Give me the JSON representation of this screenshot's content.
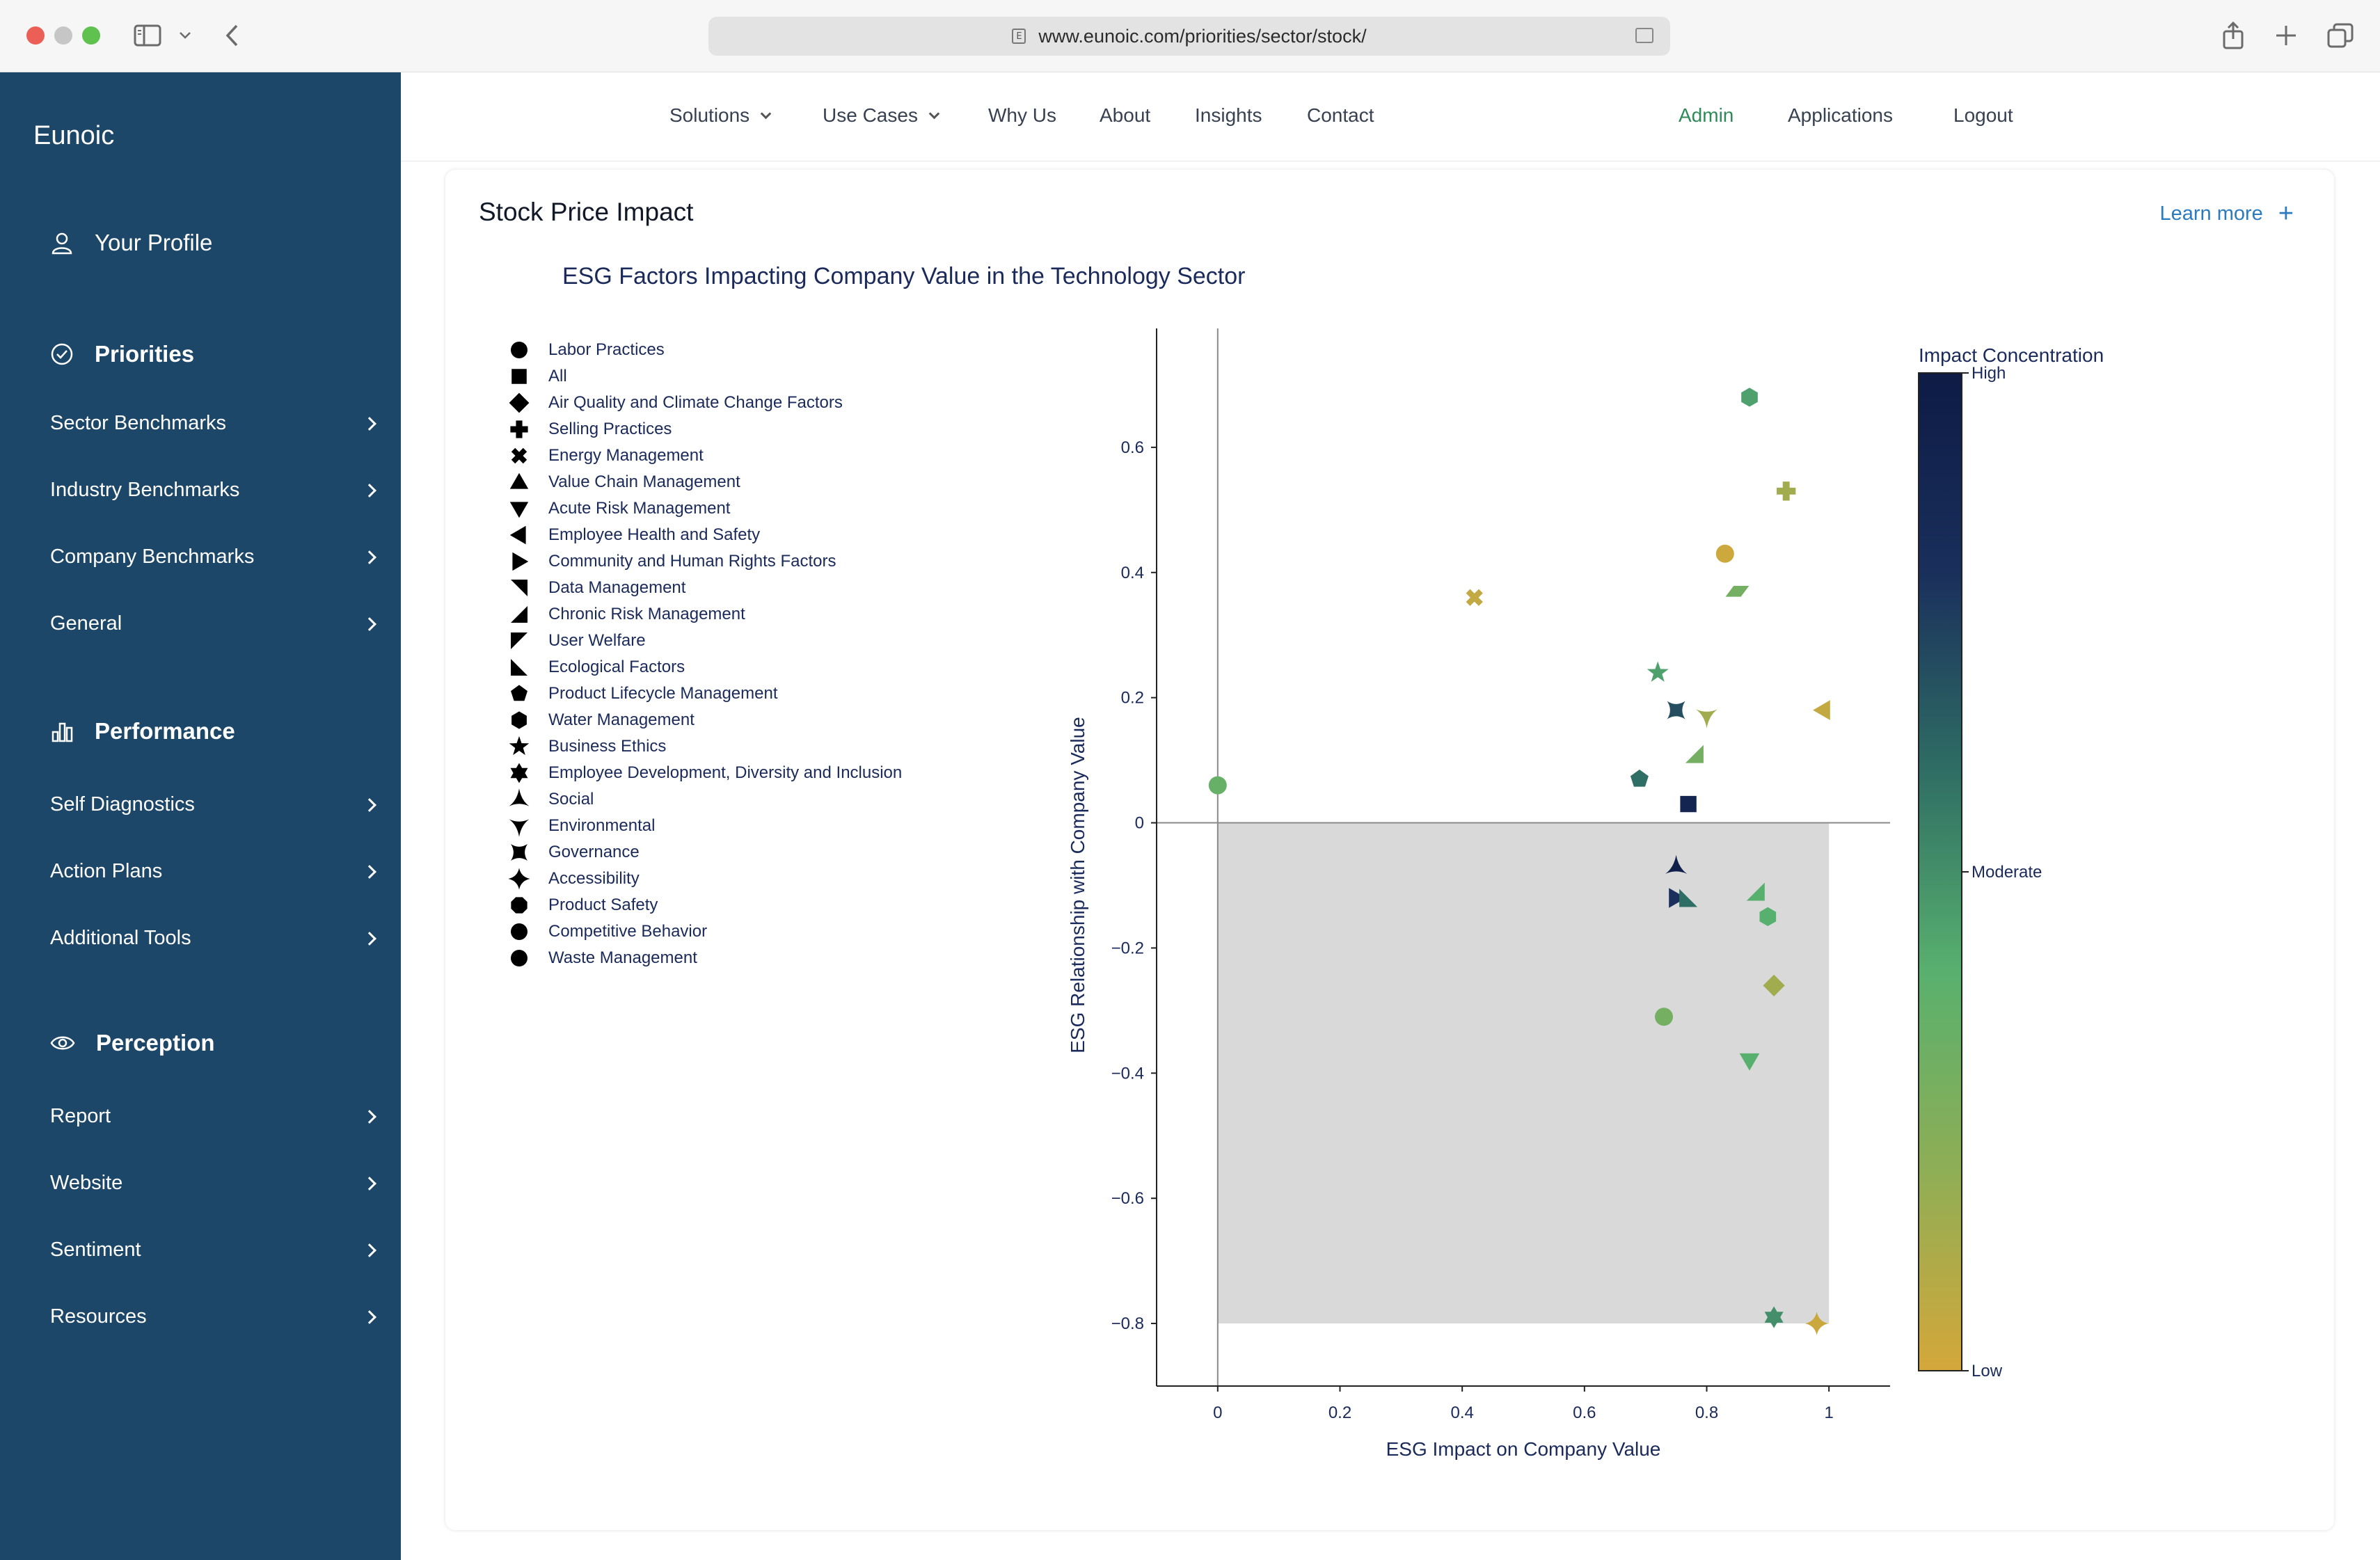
{
  "browser": {
    "url": "www.eunoic.com/priorities/sector/stock/"
  },
  "sidebar": {
    "brand": "Eunoic",
    "profile": "Your Profile",
    "priorities": {
      "title": "Priorities",
      "items": [
        "Sector Benchmarks",
        "Industry Benchmarks",
        "Company Benchmarks",
        "General"
      ]
    },
    "performance": {
      "title": "Performance",
      "items": [
        "Self Diagnostics",
        "Action Plans",
        "Additional Tools"
      ]
    },
    "perception": {
      "title": "Perception",
      "items": [
        "Report",
        "Website",
        "Sentiment",
        "Resources"
      ]
    }
  },
  "topnav": {
    "solutions": "Solutions",
    "use_cases": "Use Cases",
    "why_us": "Why Us",
    "about": "About",
    "insights": "Insights",
    "contact": "Contact",
    "admin": "Admin",
    "applications": "Applications",
    "logout": "Logout"
  },
  "card": {
    "title": "Stock Price Impact",
    "learn_more": "Learn more",
    "learn_more_plus": "+"
  },
  "colors": {
    "sidebar_bg": "#1d4768",
    "admin_green": "#2e8b57",
    "link_blue": "#2a7bbf",
    "shade": "#d9d9d9",
    "colorscale": [
      "#d4a73a",
      "#8fae55",
      "#58b06e",
      "#2f6e64",
      "#1a2f5c",
      "#0d1b45"
    ]
  },
  "chart_data": {
    "type": "scatter",
    "title": "ESG Factors Impacting Company Value in the Technology Sector",
    "xlabel": "ESG Impact on Company Value",
    "ylabel": "ESG Relationship with Company Value",
    "xlim": [
      -0.1,
      1.1
    ],
    "ylim": [
      -0.9,
      0.79
    ],
    "xticks": [
      0,
      0.2,
      0.4,
      0.6,
      0.8,
      1
    ],
    "yticks": [
      -0.8,
      -0.6,
      -0.4,
      -0.2,
      0,
      0.2,
      0.4,
      0.6
    ],
    "xtick_labels": [
      "0",
      "0.2",
      "0.4",
      "0.6",
      "0.8",
      "1"
    ],
    "ytick_labels": [
      "−0.8",
      "−0.6",
      "−0.4",
      "−0.2",
      "0",
      "0.2",
      "0.4",
      "0.6"
    ],
    "shaded_region": {
      "x": [
        0,
        1
      ],
      "y": [
        -0.8,
        0
      ]
    },
    "colorbar": {
      "title": "Impact Concentration",
      "labels": [
        "High",
        "Moderate",
        "Low"
      ]
    },
    "legend": [
      {
        "name": "Labor Practices",
        "symbol": "circle"
      },
      {
        "name": "All",
        "symbol": "square"
      },
      {
        "name": "Air Quality and Climate Change Factors",
        "symbol": "diamond"
      },
      {
        "name": "Selling Practices",
        "symbol": "cross"
      },
      {
        "name": "Energy Management",
        "symbol": "x"
      },
      {
        "name": "Value Chain Management",
        "symbol": "triangle-up"
      },
      {
        "name": "Acute Risk Management",
        "symbol": "triangle-down"
      },
      {
        "name": "Employee Health and Safety",
        "symbol": "triangle-left"
      },
      {
        "name": "Community and Human Rights Factors",
        "symbol": "triangle-right"
      },
      {
        "name": "Data Management",
        "symbol": "triangle-ne"
      },
      {
        "name": "Chronic Risk Management",
        "symbol": "triangle-se"
      },
      {
        "name": "User Welfare",
        "symbol": "triangle-sw"
      },
      {
        "name": "Ecological Factors",
        "symbol": "triangle-nw"
      },
      {
        "name": "Product Lifecycle Management",
        "symbol": "pentagon"
      },
      {
        "name": "Water Management",
        "symbol": "hexagon"
      },
      {
        "name": "Business Ethics",
        "symbol": "star"
      },
      {
        "name": "Employee Development, Diversity and Inclusion",
        "symbol": "hexagram"
      },
      {
        "name": "Social",
        "symbol": "star-triangle-up"
      },
      {
        "name": "Environmental",
        "symbol": "star-triangle-down"
      },
      {
        "name": "Governance",
        "symbol": "star-square"
      },
      {
        "name": "Accessibility",
        "symbol": "star-diamond"
      },
      {
        "name": "Product Safety",
        "symbol": "octagon"
      },
      {
        "name": "Competitive Behavior",
        "symbol": "circle"
      },
      {
        "name": "Waste Management",
        "symbol": "circle"
      }
    ],
    "points": [
      {
        "x": 0.87,
        "y": 0.68,
        "symbol": "hexagon",
        "level": 0.45
      },
      {
        "x": 0.93,
        "y": 0.53,
        "symbol": "cross",
        "level": 0.15
      },
      {
        "x": 0.83,
        "y": 0.43,
        "symbol": "circle",
        "level": 0.02
      },
      {
        "x": 0.42,
        "y": 0.36,
        "symbol": "x",
        "level": 0.05
      },
      {
        "x": 0.85,
        "y": 0.37,
        "symbol": "parallelogram",
        "level": 0.3
      },
      {
        "x": 0.72,
        "y": 0.24,
        "symbol": "star",
        "level": 0.45
      },
      {
        "x": 0.75,
        "y": 0.18,
        "symbol": "star-square",
        "level": 0.7
      },
      {
        "x": 0.8,
        "y": 0.17,
        "symbol": "star-triangle-down",
        "level": 0.15
      },
      {
        "x": 0.99,
        "y": 0.18,
        "symbol": "triangle-left",
        "level": 0.05
      },
      {
        "x": 0.78,
        "y": 0.11,
        "symbol": "triangle-se",
        "level": 0.3
      },
      {
        "x": 0.69,
        "y": 0.07,
        "symbol": "pentagon",
        "level": 0.6
      },
      {
        "x": 0.0,
        "y": 0.06,
        "symbol": "circle",
        "level": 0.35
      },
      {
        "x": 0.77,
        "y": 0.03,
        "symbol": "square",
        "level": 0.9
      },
      {
        "x": 0.75,
        "y": -0.07,
        "symbol": "star-triangle-up",
        "level": 0.95
      },
      {
        "x": 0.75,
        "y": -0.12,
        "symbol": "triangle-right",
        "level": 0.8
      },
      {
        "x": 0.77,
        "y": -0.12,
        "symbol": "triangle-nw",
        "level": 0.6
      },
      {
        "x": 0.88,
        "y": -0.11,
        "symbol": "triangle-se",
        "level": 0.4
      },
      {
        "x": 0.9,
        "y": -0.15,
        "symbol": "hexagon",
        "level": 0.4
      },
      {
        "x": 0.91,
        "y": -0.26,
        "symbol": "diamond",
        "level": 0.15
      },
      {
        "x": 0.73,
        "y": -0.31,
        "symbol": "circle",
        "level": 0.3
      },
      {
        "x": 0.87,
        "y": -0.38,
        "symbol": "triangle-down",
        "level": 0.4
      },
      {
        "x": 0.91,
        "y": -0.79,
        "symbol": "hexagram",
        "level": 0.5
      },
      {
        "x": 0.98,
        "y": -0.8,
        "symbol": "star-diamond",
        "level": 0.03
      }
    ]
  }
}
